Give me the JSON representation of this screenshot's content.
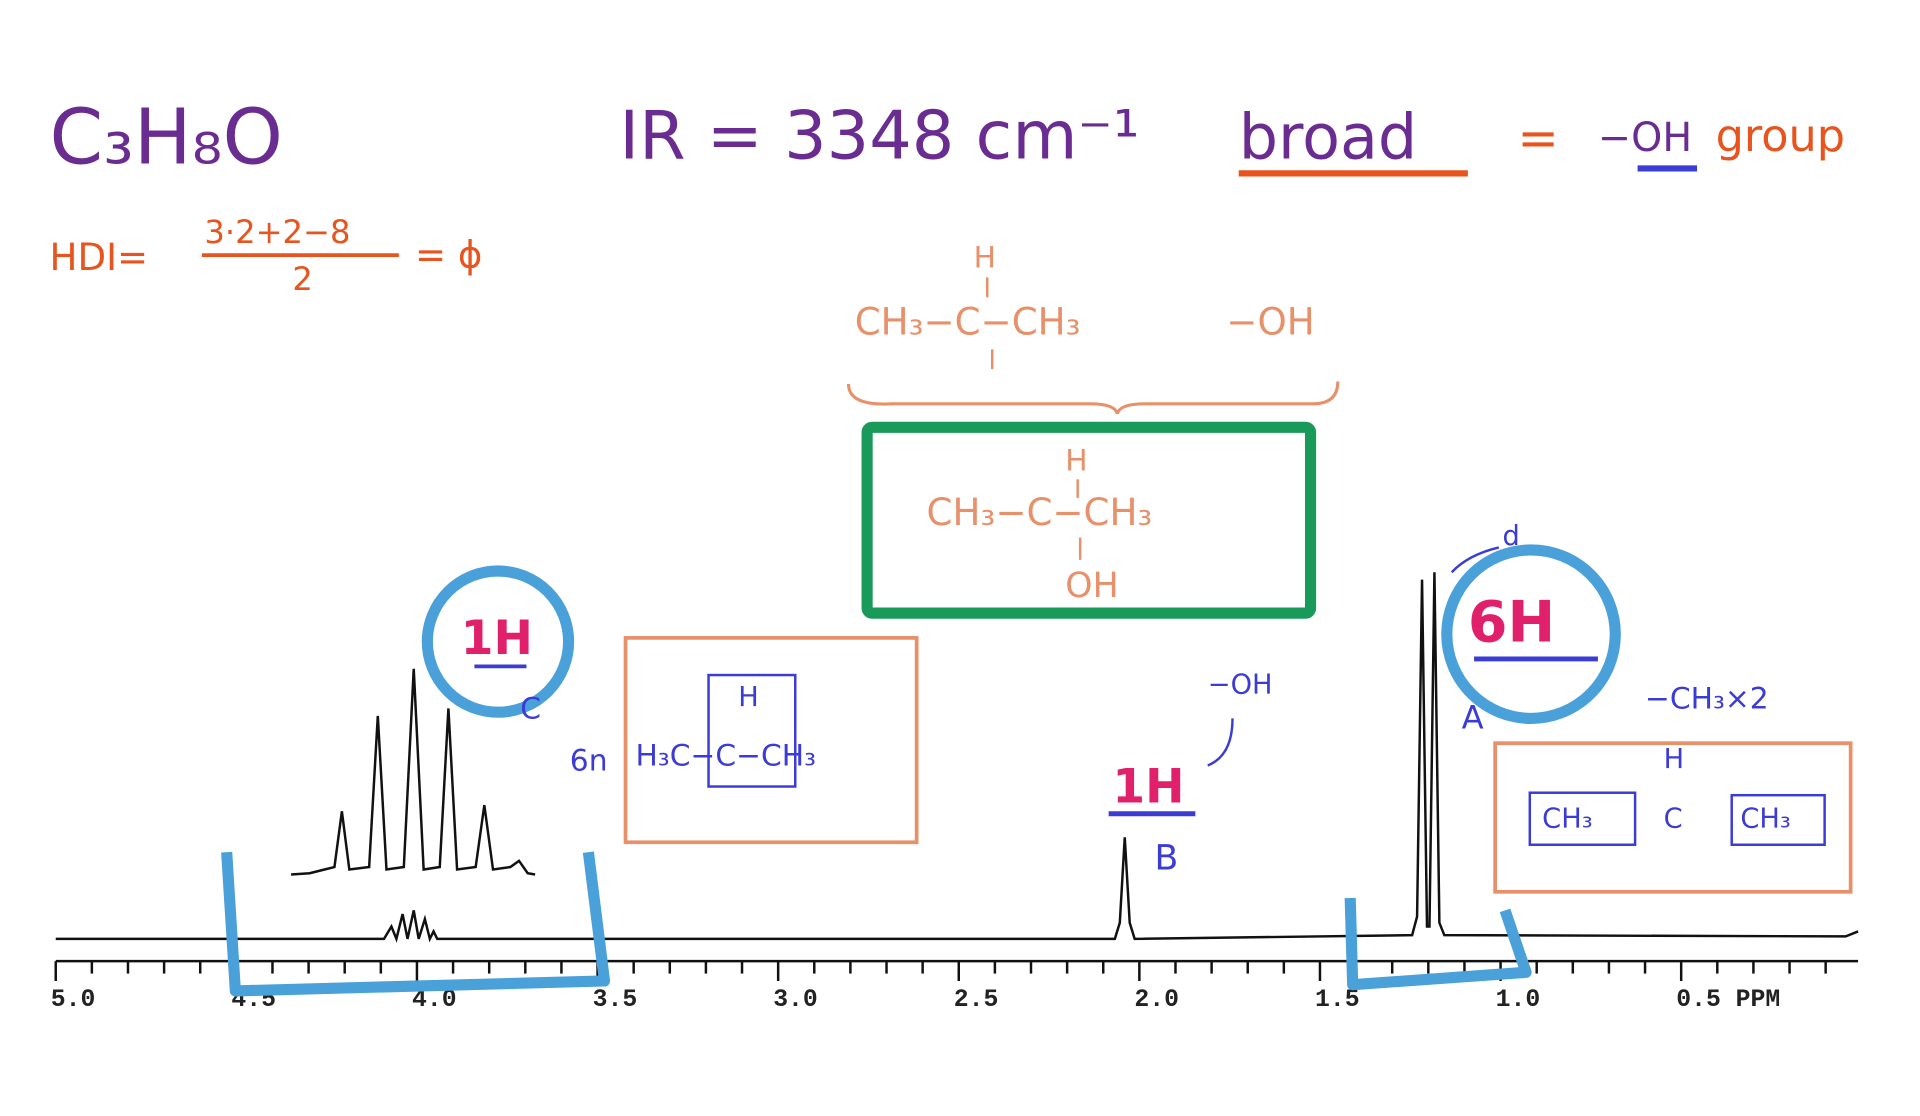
{
  "formula": "C₃H₈O",
  "ir": {
    "text": "IR = 3348 cm⁻¹",
    "broad": "broad",
    "equals": "=",
    "group_oh": "−OH",
    "group": "group"
  },
  "hdi": {
    "label": "HDI=",
    "numerator": "3·2+2−8",
    "denominator": "2",
    "result": "= ϕ"
  },
  "fragments": {
    "h": "H",
    "chain": "CH₃−C−CH₃",
    "oh": "−OH"
  },
  "answer": {
    "h": "H",
    "chain": "CH₃−C−CH₃",
    "oh": "OH"
  },
  "signal_c": {
    "count": "1H",
    "letter": "C",
    "multiplicity": "6n",
    "structure_h": "H",
    "structure": "H₃C−C−CH₃"
  },
  "signal_b": {
    "group": "−OH",
    "count": "1H",
    "letter": "B"
  },
  "signal_a": {
    "multiplicity": "d",
    "count": "6H",
    "letter": "A",
    "group": "−CH₃×2",
    "structure_h": "H",
    "left": "CH₃",
    "center": "C",
    "right": "CH₃"
  },
  "axis_labels": [
    "5.0",
    "4.5",
    "4.0",
    "3.5",
    "3.0",
    "2.5",
    "2.0",
    "1.5",
    "1.0",
    "0.5 PPM"
  ]
}
